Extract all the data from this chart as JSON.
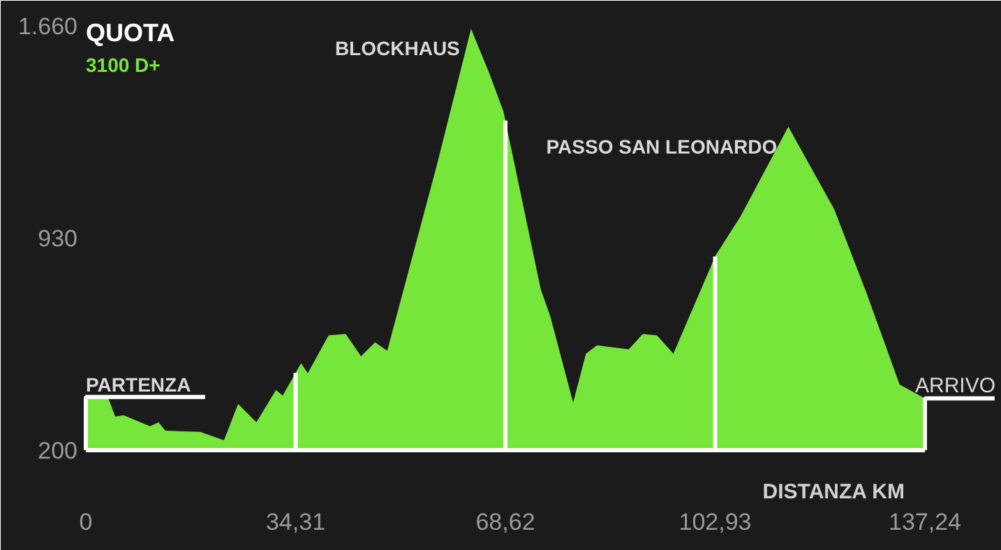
{
  "chart_data": {
    "type": "area",
    "title": "QUOTA",
    "subtitle": "3100 D+",
    "xlabel": "DISTANZA KM",
    "x": [
      0,
      3.6,
      4.8,
      6.2,
      10.5,
      11.9,
      13.0,
      18.7,
      22.6,
      24.9,
      27.9,
      31.1,
      32.2,
      35.2,
      36.3,
      39.7,
      42.5,
      45.0,
      47.3,
      49.3,
      57.5,
      63.0,
      66.0,
      68.3,
      74.4,
      76.0,
      79.7,
      81.8,
      83.6,
      88.8,
      91.1,
      93.4,
      96.1,
      103.0,
      107.1,
      114.9,
      122.4,
      127.7,
      133.1,
      137.24
    ],
    "series": [
      {
        "color": "#77e63a",
        "values": [
          383,
          383,
          316,
          320,
          282,
          296,
          267,
          263,
          234,
          359,
          296,
          407,
          388,
          499,
          465,
          595,
          600,
          523,
          571,
          542,
          1188,
          1650,
          1496,
          1366,
          754,
          658,
          364,
          532,
          561,
          547,
          600,
          595,
          532,
          870,
          1005,
          1313,
          1029,
          740,
          426,
          378
        ]
      }
    ],
    "xlim": [
      0,
      137.24
    ],
    "ylim": [
      200,
      1660
    ],
    "xticks": [
      0,
      {
        "value": 34.31,
        "label": "34,31"
      },
      {
        "value": 68.62,
        "label": "68,62"
      },
      {
        "value": 102.93,
        "label": "102,93"
      },
      {
        "value": 137.24,
        "label": "137,24"
      }
    ],
    "yticks": [
      200,
      930,
      {
        "value": 1660,
        "label": "1.660"
      }
    ],
    "ref_lines": [
      {
        "axis": "x",
        "value": 34.31,
        "color": "#ffffff"
      },
      {
        "axis": "x",
        "value": 68.62,
        "color": "#ffffff"
      },
      {
        "axis": "x",
        "value": 102.93,
        "color": "#ffffff"
      }
    ],
    "annotations": [
      {
        "text": "PARTENZA",
        "x": 0,
        "y": 383
      },
      {
        "text": "BLOCKHAUS",
        "x": 63.0,
        "y": 1650
      },
      {
        "text": "PASSO SAN LEONARDO",
        "x": 114.9,
        "y": 1313
      },
      {
        "text": "ARRIVO",
        "x": 137.24,
        "y": 378
      }
    ]
  }
}
